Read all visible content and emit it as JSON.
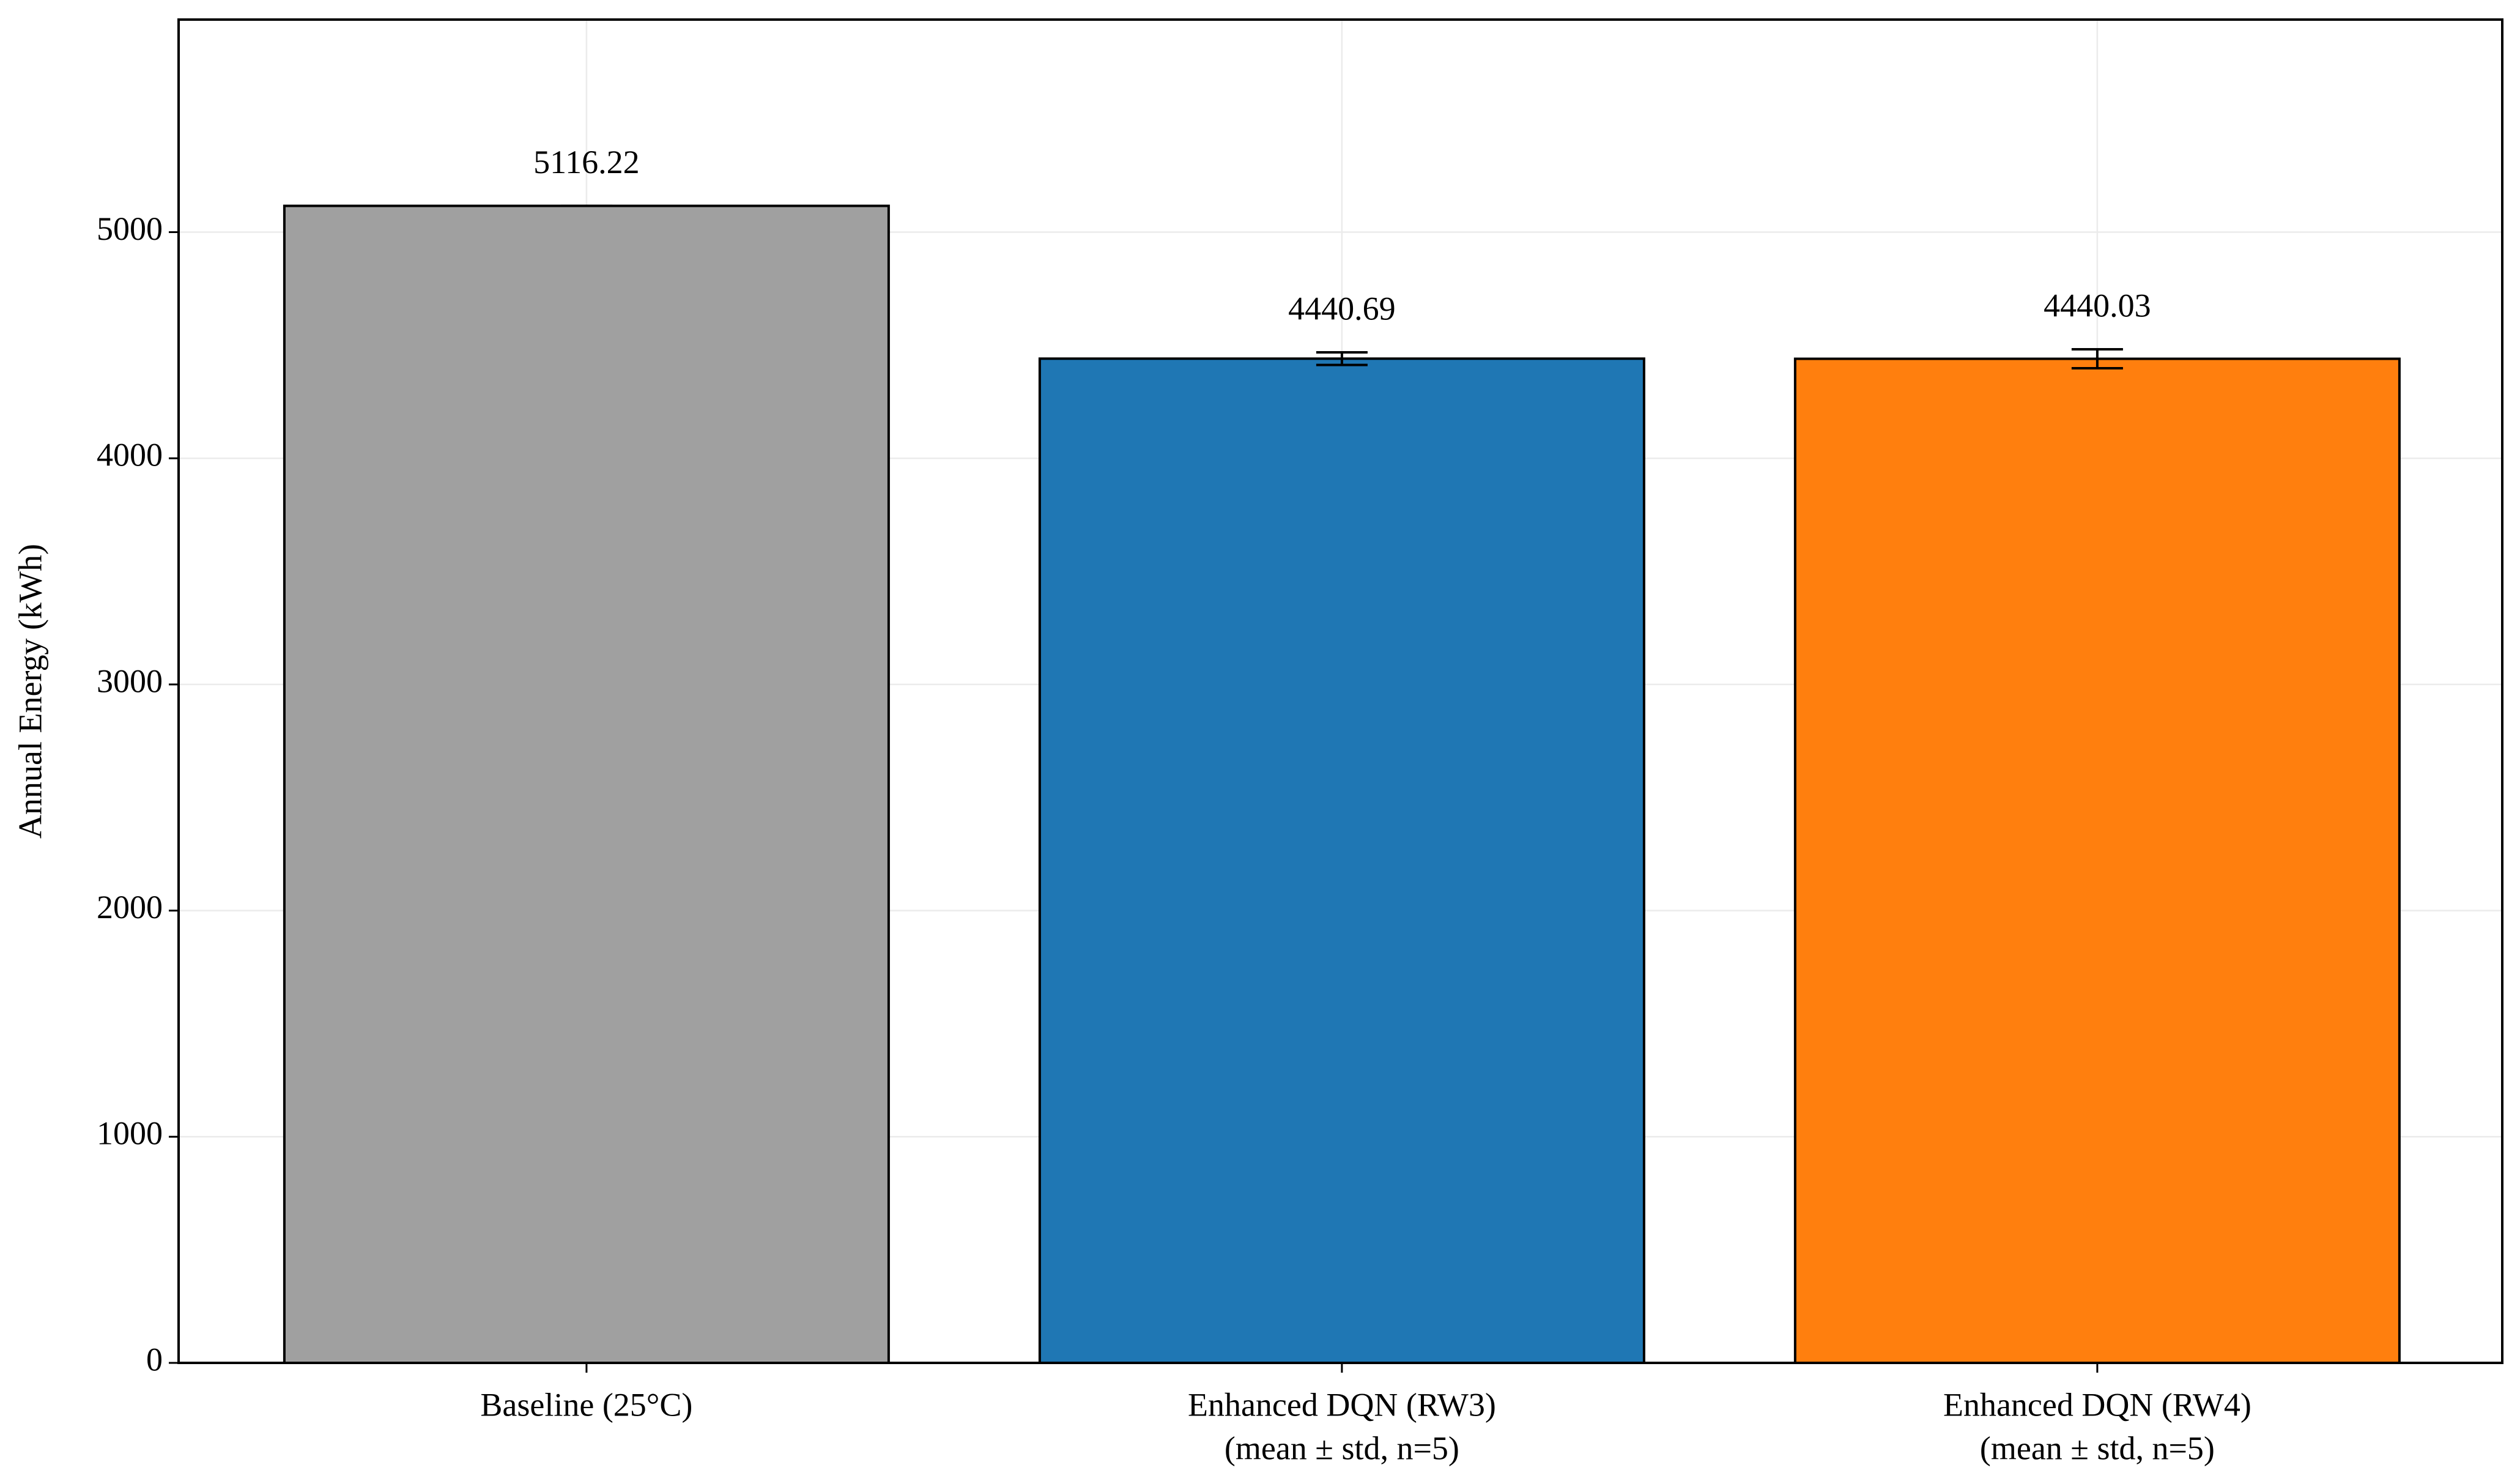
{
  "chart_data": {
    "type": "bar",
    "y_label": "Annual Energy (kWh)",
    "categories": [
      [
        "Baseline (25°C)"
      ],
      [
        "Enhanced DQN (RW3)",
        "(mean ± std, n=5)"
      ],
      [
        "Enhanced DQN (RW4)",
        "(mean ± std, n=5)"
      ]
    ],
    "values": [
      5116.22,
      4440.69,
      4440.03
    ],
    "errors": [
      0,
      28,
      42
    ],
    "colors": [
      "#a0a0a0",
      "#1f77b4",
      "#ff7f0e"
    ],
    "ylim": [
      0,
      5940
    ],
    "yticks": [
      0,
      1000,
      2000,
      3000,
      4000,
      5000
    ],
    "grid": true
  }
}
